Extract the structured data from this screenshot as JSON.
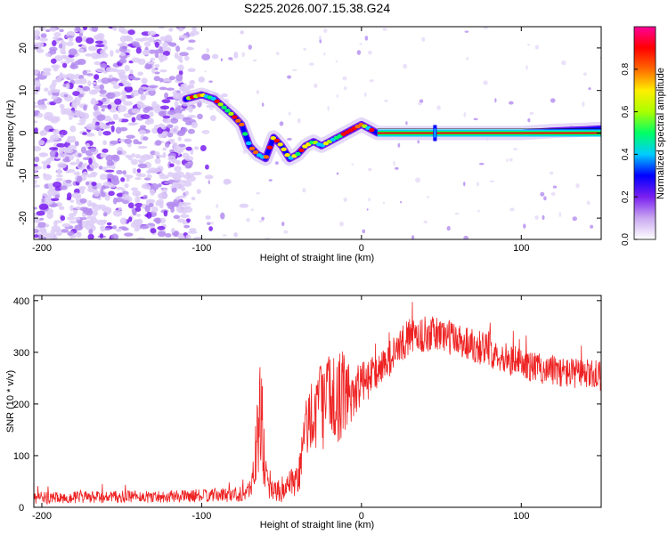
{
  "title": "S225.2026.007.15.38.G24",
  "chart_data": [
    {
      "type": "heatmap",
      "xlabel": "Height of straight line (km)",
      "ylabel": "Frequency (Hz)",
      "xlim": [
        -205,
        150
      ],
      "ylim": [
        -25,
        25
      ],
      "xticks": [
        -200,
        -100,
        0,
        100
      ],
      "yticks": [
        -20,
        -10,
        0,
        10,
        20
      ],
      "colorbar": {
        "label": "Normalized spectral amplitude",
        "range": [
          0,
          1
        ],
        "ticks": [
          "0.0",
          "0.2",
          "0.4",
          "0.6",
          "0.8"
        ],
        "tick_values": [
          0,
          0.2,
          0.4,
          0.6,
          0.8
        ],
        "colors": [
          "#ffffff",
          "#c9a8f0",
          "#7a1ff0",
          "#0000ff",
          "#00ccff",
          "#00ff66",
          "#aaff00",
          "#ffee00",
          "#ff6a00",
          "#ff0000",
          "#ff0099"
        ]
      },
      "noise_region_x": [
        -205,
        -105
      ],
      "ridge": {
        "x": [
          -110,
          -100,
          -92,
          -86,
          -80,
          -75,
          -70,
          -65,
          -60,
          -55,
          -50,
          -45,
          -40,
          -35,
          -30,
          -25,
          -20,
          -15,
          -10,
          -5,
          0,
          5,
          10,
          20,
          40,
          60,
          80,
          100,
          120,
          140,
          150
        ],
        "y": [
          8,
          9,
          8,
          6,
          4,
          2,
          -3,
          -5,
          -6,
          -1,
          -3,
          -6,
          -5,
          -3,
          -2,
          -3,
          -2,
          -1,
          0,
          1,
          2,
          1,
          0,
          0,
          0,
          0,
          0,
          0,
          0.5,
          0.8,
          1
        ]
      },
      "flat_line_x": [
        10,
        150
      ],
      "spike_x": 46
    },
    {
      "type": "line",
      "xlabel": "Height of straight line (km)",
      "ylabel": "SNR (10 * v/v)",
      "xlim": [
        -205,
        150
      ],
      "ylim": [
        0,
        410
      ],
      "xticks": [
        -200,
        -100,
        0,
        100
      ],
      "yticks": [
        0,
        100,
        200,
        300,
        400
      ],
      "series": [
        {
          "name": "SNR",
          "color": "#ee2222",
          "envelope_x": [
            -205,
            -150,
            -100,
            -80,
            -70,
            -64,
            -62,
            -60,
            -58,
            -55,
            -50,
            -45,
            -40,
            -35,
            -30,
            -25,
            -20,
            -15,
            -10,
            -5,
            0,
            5,
            10,
            15,
            20,
            25,
            30,
            40,
            50,
            60,
            70,
            80,
            90,
            100,
            110,
            120,
            130,
            140,
            150
          ],
          "envelope_mean": [
            18,
            20,
            22,
            25,
            30,
            150,
            160,
            70,
            40,
            30,
            35,
            40,
            45,
            150,
            190,
            200,
            210,
            215,
            220,
            225,
            240,
            250,
            265,
            280,
            295,
            315,
            330,
            335,
            335,
            325,
            315,
            305,
            290,
            278,
            270,
            265,
            260,
            258,
            255
          ],
          "envelope_noise": [
            12,
            12,
            12,
            15,
            20,
            90,
            110,
            40,
            25,
            20,
            25,
            30,
            40,
            60,
            80,
            90,
            90,
            90,
            80,
            60,
            40,
            40,
            35,
            35,
            35,
            35,
            35,
            35,
            35,
            35,
            35,
            35,
            30,
            30,
            30,
            30,
            30,
            30,
            30
          ]
        }
      ]
    }
  ]
}
